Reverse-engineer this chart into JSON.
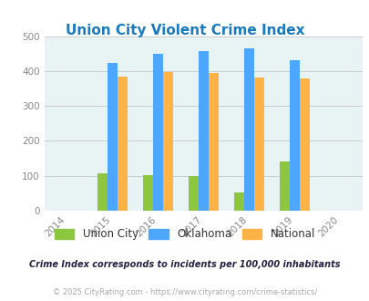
{
  "title": "Union City Violent Crime Index",
  "years": [
    2015,
    2016,
    2017,
    2018,
    2019
  ],
  "union_city": [
    107,
    103,
    100,
    53,
    140
  ],
  "oklahoma": [
    422,
    450,
    458,
    466,
    432
  ],
  "national": [
    384,
    398,
    394,
    381,
    380
  ],
  "bar_width": 0.22,
  "color_union_city": "#8dc63f",
  "color_oklahoma": "#4da6ff",
  "color_national": "#ffb347",
  "xlim": [
    2013.5,
    2020.5
  ],
  "ylim": [
    0,
    500
  ],
  "yticks": [
    0,
    100,
    200,
    300,
    400,
    500
  ],
  "xticks": [
    2014,
    2015,
    2016,
    2017,
    2018,
    2019,
    2020
  ],
  "background_color": "#e8f4f4",
  "title_color": "#1a7abf",
  "title_fontsize": 11,
  "legend_labels": [
    "Union City",
    "Oklahoma",
    "National"
  ],
  "footnote1": "Crime Index corresponds to incidents per 100,000 inhabitants",
  "footnote2": "© 2025 CityRating.com - https://www.cityrating.com/crime-statistics/",
  "footnote1_color": "#222244",
  "footnote2_color": "#aaaaaa",
  "grid_color": "#cccccc",
  "tick_color": "#888888"
}
